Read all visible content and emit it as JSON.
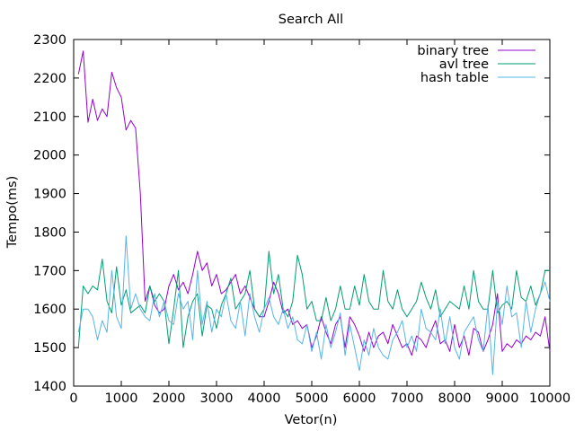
{
  "chart_data": {
    "type": "line",
    "title": "Search All",
    "xlabel": "Vetor(n)",
    "ylabel": "Tempo(ms)",
    "xlim": [
      0,
      10000
    ],
    "ylim": [
      1400,
      2300
    ],
    "xticks": [
      0,
      1000,
      2000,
      3000,
      4000,
      5000,
      6000,
      7000,
      8000,
      9000,
      10000
    ],
    "yticks": [
      1400,
      1500,
      1600,
      1700,
      1800,
      1900,
      2000,
      2100,
      2200,
      2300
    ],
    "grid": false,
    "legend_position": "top-right",
    "x": [
      100,
      200,
      300,
      400,
      500,
      600,
      700,
      800,
      900,
      1000,
      1100,
      1200,
      1300,
      1400,
      1500,
      1600,
      1700,
      1800,
      1900,
      2000,
      2100,
      2200,
      2300,
      2400,
      2500,
      2600,
      2700,
      2800,
      2900,
      3000,
      3100,
      3200,
      3300,
      3400,
      3500,
      3600,
      3700,
      3800,
      3900,
      4000,
      4100,
      4200,
      4300,
      4400,
      4500,
      4600,
      4700,
      4800,
      4900,
      5000,
      5100,
      5200,
      5300,
      5400,
      5500,
      5600,
      5700,
      5800,
      5900,
      6000,
      6100,
      6200,
      6300,
      6400,
      6500,
      6600,
      6700,
      6800,
      6900,
      7000,
      7100,
      7200,
      7300,
      7400,
      7500,
      7600,
      7700,
      7800,
      7900,
      8000,
      8100,
      8200,
      8300,
      8400,
      8500,
      8600,
      8700,
      8800,
      8900,
      9000,
      9100,
      9200,
      9300,
      9400,
      9500,
      9600,
      9700,
      9800,
      9900,
      10000
    ],
    "series": [
      {
        "name": "binary tree",
        "color": "#9400d3",
        "values": [
          2210,
          2270,
          2085,
          2145,
          2090,
          2120,
          2100,
          2215,
          2175,
          2150,
          2065,
          2090,
          2070,
          1900,
          1620,
          1660,
          1610,
          1590,
          1600,
          1660,
          1690,
          1650,
          1670,
          1640,
          1690,
          1750,
          1700,
          1720,
          1660,
          1690,
          1640,
          1650,
          1670,
          1690,
          1640,
          1660,
          1630,
          1600,
          1580,
          1580,
          1620,
          1670,
          1640,
          1590,
          1600,
          1560,
          1570,
          1550,
          1560,
          1500,
          1530,
          1580,
          1540,
          1510,
          1560,
          1580,
          1500,
          1580,
          1560,
          1530,
          1490,
          1540,
          1500,
          1530,
          1540,
          1510,
          1560,
          1530,
          1500,
          1510,
          1480,
          1530,
          1520,
          1500,
          1540,
          1570,
          1510,
          1520,
          1490,
          1560,
          1500,
          1530,
          1480,
          1550,
          1540,
          1490,
          1520,
          1560,
          1640,
          1490,
          1510,
          1500,
          1520,
          1510,
          1530,
          1520,
          1540,
          1530,
          1580,
          1490
        ]
      },
      {
        "name": "avl tree",
        "color": "#009e73",
        "values": [
          1500,
          1660,
          1640,
          1660,
          1650,
          1730,
          1620,
          1590,
          1710,
          1610,
          1650,
          1590,
          1600,
          1610,
          1590,
          1660,
          1620,
          1640,
          1620,
          1510,
          1600,
          1700,
          1500,
          1580,
          1620,
          1640,
          1530,
          1610,
          1600,
          1550,
          1610,
          1640,
          1680,
          1600,
          1620,
          1640,
          1700,
          1600,
          1580,
          1600,
          1750,
          1640,
          1690,
          1600,
          1580,
          1620,
          1740,
          1690,
          1600,
          1620,
          1570,
          1570,
          1630,
          1570,
          1600,
          1660,
          1600,
          1600,
          1660,
          1610,
          1690,
          1620,
          1600,
          1600,
          1700,
          1620,
          1600,
          1650,
          1600,
          1580,
          1600,
          1620,
          1670,
          1630,
          1600,
          1650,
          1580,
          1600,
          1620,
          1610,
          1600,
          1660,
          1600,
          1700,
          1620,
          1600,
          1600,
          1700,
          1590,
          1610,
          1620,
          1600,
          1700,
          1630,
          1620,
          1660,
          1610,
          1640,
          1700,
          1700
        ]
      },
      {
        "name": "hash table",
        "color": "#56b4e9",
        "values": [
          1540,
          1600,
          1600,
          1580,
          1520,
          1570,
          1540,
          1700,
          1580,
          1550,
          1790,
          1600,
          1640,
          1600,
          1580,
          1570,
          1640,
          1580,
          1620,
          1570,
          1560,
          1640,
          1600,
          1620,
          1520,
          1700,
          1560,
          1620,
          1540,
          1600,
          1580,
          1640,
          1570,
          1550,
          1620,
          1530,
          1640,
          1580,
          1540,
          1600,
          1630,
          1580,
          1560,
          1600,
          1550,
          1580,
          1520,
          1510,
          1560,
          1490,
          1540,
          1470,
          1560,
          1500,
          1540,
          1590,
          1480,
          1560,
          1500,
          1440,
          1520,
          1480,
          1550,
          1500,
          1480,
          1470,
          1520,
          1540,
          1570,
          1500,
          1530,
          1490,
          1600,
          1550,
          1540,
          1520,
          1600,
          1510,
          1580,
          1500,
          1470,
          1540,
          1560,
          1580,
          1520,
          1490,
          1610,
          1430,
          1620,
          1560,
          1660,
          1580,
          1590,
          1500,
          1620,
          1540,
          1600,
          1640,
          1670,
          1620
        ]
      }
    ]
  }
}
